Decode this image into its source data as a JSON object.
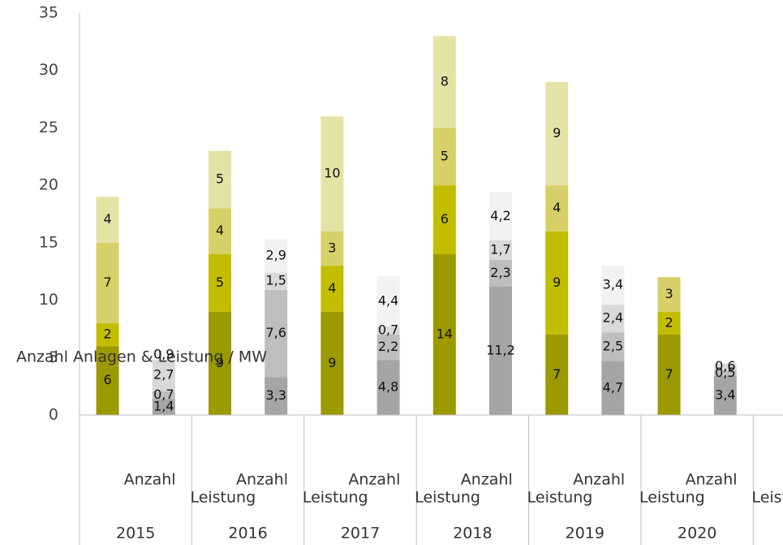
{
  "chart_data": {
    "type": "stacked-bar",
    "axis_label": "Anzahl Anlagen & Leistung / MW",
    "categories": [
      "Anzahl",
      "Leistung",
      "Anzahl",
      "Leistung",
      "Anzahl",
      "Leistung",
      "Anzahl",
      "Leistung",
      "Anzahl",
      "Leistung",
      "Anzahl",
      "Leistung"
    ],
    "groups": [
      "2015",
      "2016",
      "2017",
      "2018",
      "2019",
      "2020"
    ],
    "ylim": [
      0,
      35
    ],
    "yticks": [
      0,
      5,
      10,
      15,
      20,
      25,
      30,
      35
    ],
    "grid": false,
    "series": [
      {
        "color": "#9b9a00",
        "values": [
          6,
          null,
          9,
          null,
          9,
          null,
          14,
          null,
          7,
          null,
          7,
          null
        ]
      },
      {
        "color": "#c3bd00",
        "values": [
          2,
          null,
          5,
          null,
          4,
          null,
          6,
          null,
          9,
          null,
          2,
          null
        ]
      },
      {
        "color": "#d6d068",
        "values": [
          7,
          null,
          4,
          null,
          3,
          null,
          5,
          null,
          4,
          null,
          3,
          null
        ]
      },
      {
        "color": "#e5e2a6",
        "values": [
          4,
          null,
          5,
          null,
          10,
          null,
          8,
          null,
          9,
          null,
          null,
          null
        ]
      },
      {
        "color": "#a5a5a5",
        "values": [
          null,
          1.4,
          null,
          3.3,
          null,
          4.8,
          null,
          11.2,
          null,
          4.7,
          null,
          3.4
        ],
        "value_labels": [
          null,
          "1,4",
          null,
          "3,3",
          null,
          "4,8",
          null,
          "11,2",
          null,
          "4,7",
          null,
          "3,4"
        ]
      },
      {
        "color": "#bebebe",
        "values": [
          null,
          0.7,
          null,
          7.6,
          null,
          2.2,
          null,
          2.3,
          null,
          2.5,
          null,
          0.5
        ],
        "value_labels": [
          null,
          "0,7",
          null,
          "7,6",
          null,
          "2,2",
          null,
          "2,3",
          null,
          "2,5",
          null,
          "0,5"
        ]
      },
      {
        "color": "#d9d9d9",
        "values": [
          null,
          2.7,
          null,
          1.5,
          null,
          0.7,
          null,
          1.7,
          null,
          2.4,
          null,
          0.6
        ],
        "value_labels": [
          null,
          "2,7",
          null,
          "1,5",
          null,
          "0,7",
          null,
          "1,7",
          null,
          "2,4",
          null,
          "0,6"
        ]
      },
      {
        "color": "#f2f2f2",
        "values": [
          null,
          0.9,
          null,
          2.9,
          null,
          4.4,
          null,
          4.2,
          null,
          3.4,
          null,
          null
        ],
        "value_labels": [
          null,
          "0,9",
          null,
          "2,9",
          null,
          "4,4",
          null,
          "4,2",
          null,
          "3,4",
          null,
          null
        ]
      }
    ]
  }
}
